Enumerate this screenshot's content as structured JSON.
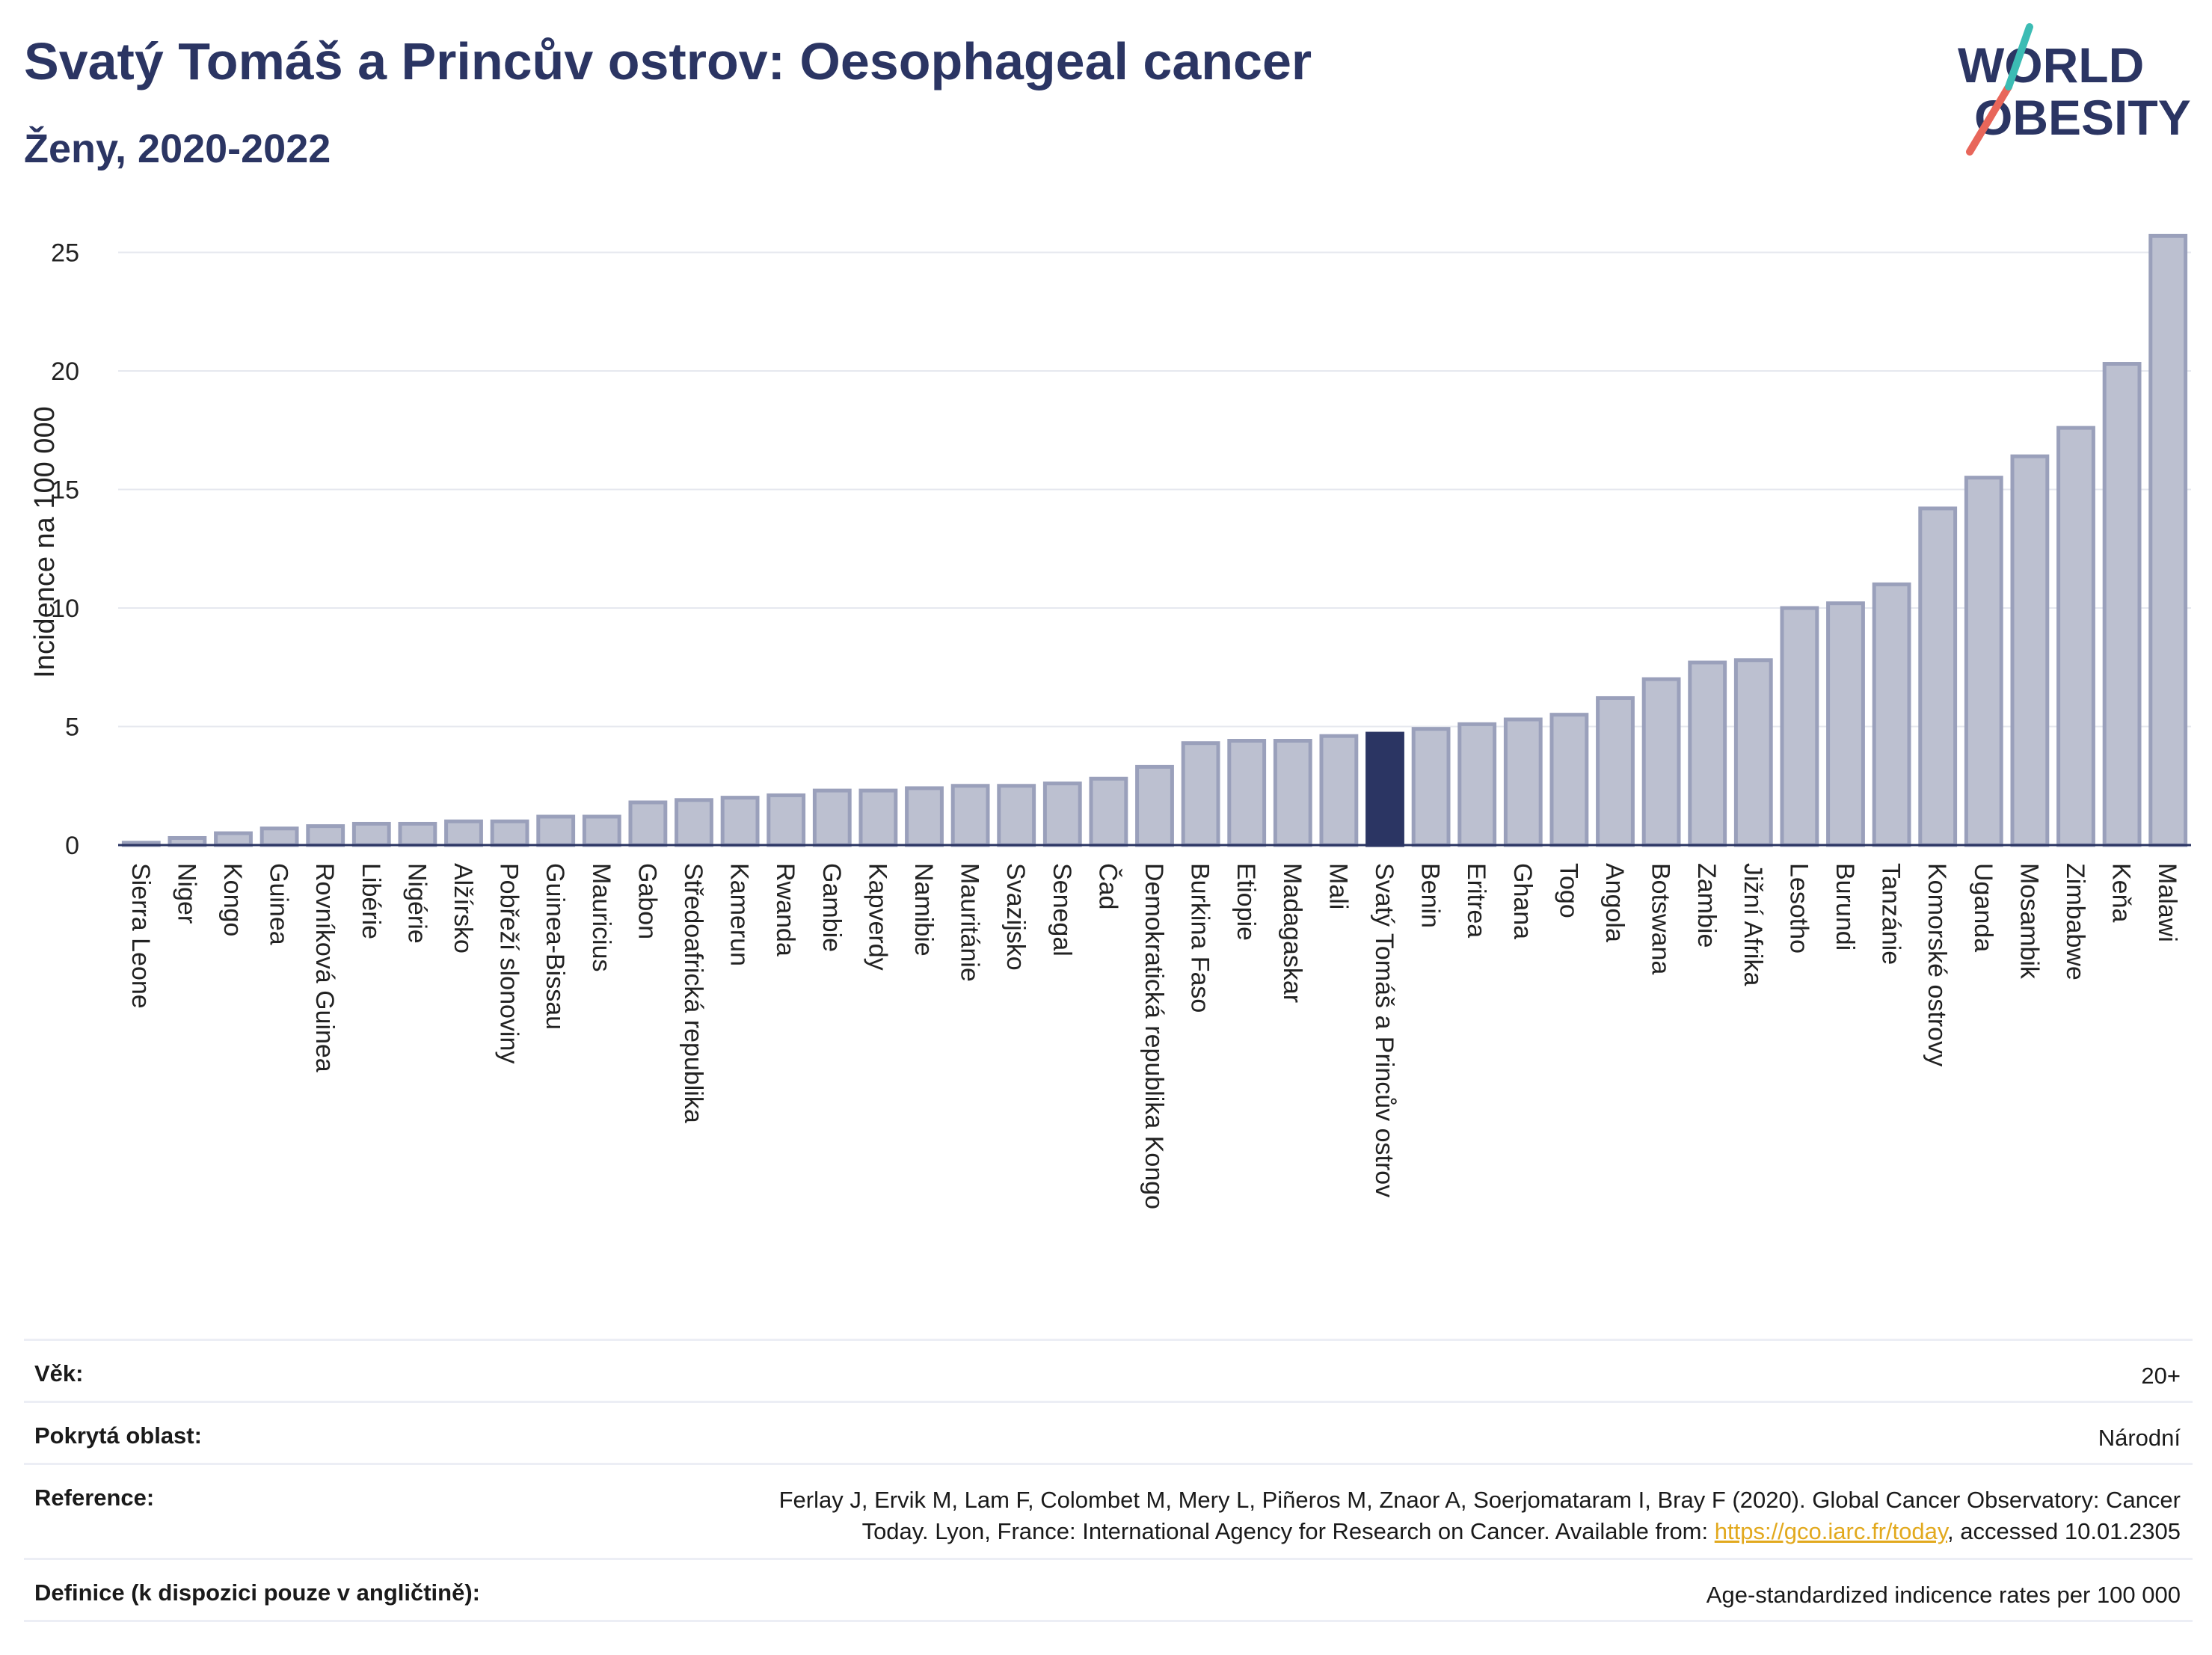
{
  "header": {
    "title": "Svatý Tomáš a Princův ostrov: Oesophageal cancer",
    "subtitle": "Ženy, 2020-2022"
  },
  "logo": {
    "line1": "WORLD",
    "line2": "OBESITY",
    "colors": [
      "#2b3563",
      "#e8665a",
      "#3cbcb4"
    ]
  },
  "colors": {
    "bar": "#bcc0d0",
    "bar_border": "#9aa0bb",
    "highlight": "#2b3563",
    "grid": "#e6e8ef",
    "axis": "#2b3563"
  },
  "chart_data": {
    "type": "bar",
    "title": "Svatý Tomáš a Princův ostrov: Oesophageal cancer",
    "subtitle": "Ženy, 2020-2022",
    "ylabel": "Incidence na 100 000",
    "xlabel": "",
    "ylim": [
      0,
      26.5
    ],
    "yticks": [
      0,
      5,
      10,
      15,
      20,
      25
    ],
    "grid": true,
    "highlight": "Svatý Tomáš a Princův ostrov",
    "categories": [
      "Sierra Leone",
      "Niger",
      "Kongo",
      "Guinea",
      "Rovníková Guinea",
      "Libérie",
      "Nigérie",
      "Alžírsko",
      "Pobřeží slonoviny",
      "Guinea-Bissau",
      "Mauricius",
      "Gabon",
      "Středoafrická republika",
      "Kamerun",
      "Rwanda",
      "Gambie",
      "Kapverdy",
      "Namibie",
      "Mauritánie",
      "Svazijsko",
      "Senegal",
      "Čad",
      "Demokratická republika Kongo",
      "Burkina Faso",
      "Etiopie",
      "Madagaskar",
      "Mali",
      "Svatý Tomáš a Princův ostrov",
      "Benin",
      "Eritrea",
      "Ghana",
      "Togo",
      "Angola",
      "Botswana",
      "Zambie",
      "Jižní Afrika",
      "Lesotho",
      "Burundi",
      "Tanzánie",
      "Komorské ostrovy",
      "Uganda",
      "Mosambik",
      "Zimbabwe",
      "Keňa",
      "Malawi"
    ],
    "values": [
      0.1,
      0.3,
      0.5,
      0.7,
      0.8,
      0.9,
      0.9,
      1.0,
      1.0,
      1.2,
      1.2,
      1.8,
      1.9,
      2.0,
      2.1,
      2.3,
      2.3,
      2.4,
      2.5,
      2.5,
      2.6,
      2.8,
      3.3,
      4.3,
      4.4,
      4.4,
      4.6,
      4.7,
      4.9,
      5.1,
      5.3,
      5.5,
      6.2,
      7.0,
      7.7,
      7.8,
      10.0,
      10.2,
      11.0,
      14.2,
      15.5,
      16.4,
      17.6,
      20.3,
      25.7
    ]
  },
  "footer": {
    "rows": [
      {
        "key": "Věk:",
        "value": "20+"
      },
      {
        "key": "Pokrytá oblast:",
        "value": "Národní"
      },
      {
        "key": "Reference:",
        "value_line1": "Ferlay J, Ervik M, Lam F, Colombet M, Mery L, Piñeros M, Znaor A, Soerjomataram I, Bray F (2020). Global Cancer Observatory: Cancer",
        "value_line2_pre": "Today. Lyon, France: International Agency for Research on Cancer. Available from: ",
        "link": "https://gco.iarc.fr/today",
        "value_line2_post": ", accessed 10.01.2305"
      },
      {
        "key": "Definice (k dispozici pouze v angličtině):",
        "value": "Age-standardized indicence rates per 100 000"
      }
    ]
  }
}
